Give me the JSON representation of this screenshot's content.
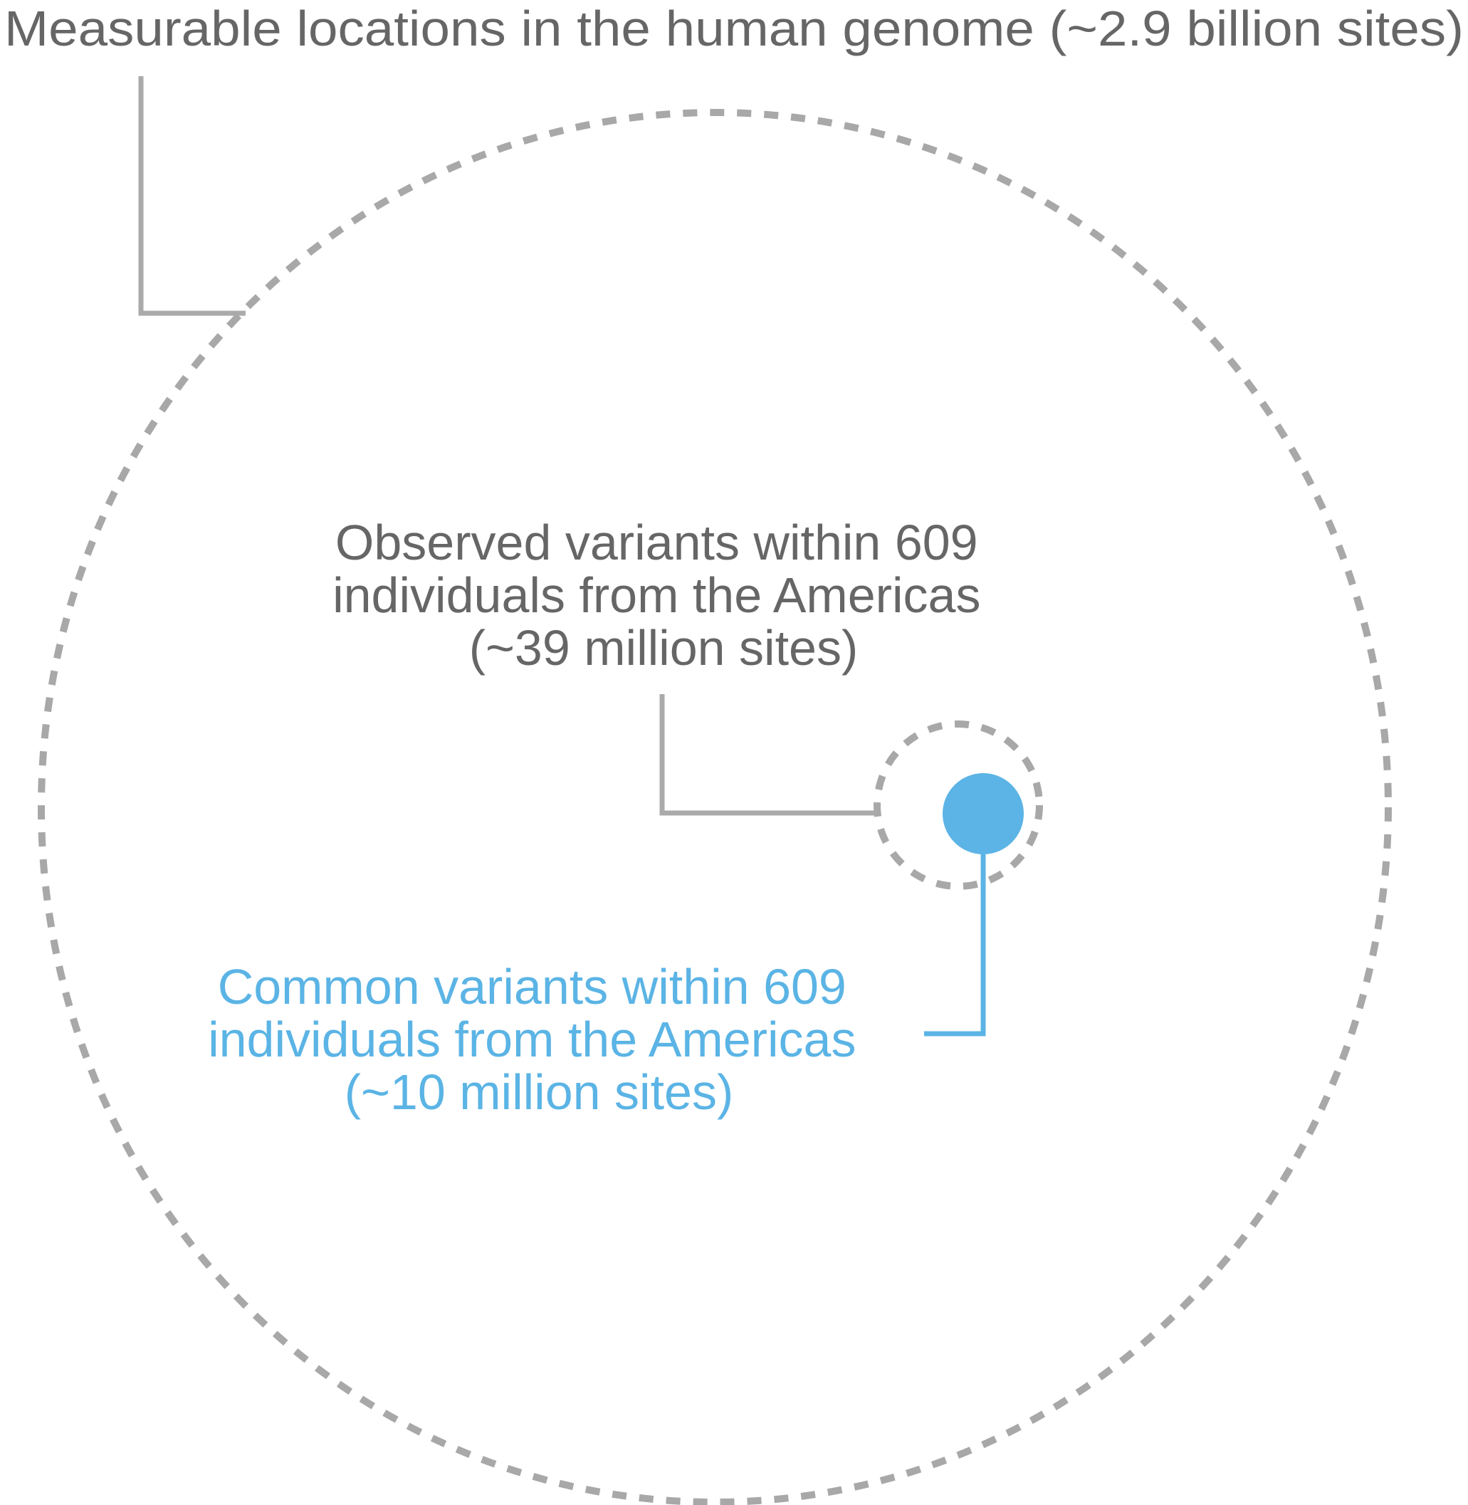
{
  "colors": {
    "text_gray": "#666666",
    "ring_gray": "#a8a8a8",
    "accent_blue": "#5bb4e5"
  },
  "sets": {
    "genome": {
      "label": "Measurable locations in the human genome (~2.9 billion sites)"
    },
    "observed": {
      "label_lines": [
        "Observed variants within 609",
        "individuals from the Americas",
        "(~39 million sites)"
      ]
    },
    "common": {
      "label_lines": [
        "Common variants within 609",
        "individuals from the Americas",
        "(~10 million sites)"
      ]
    }
  }
}
